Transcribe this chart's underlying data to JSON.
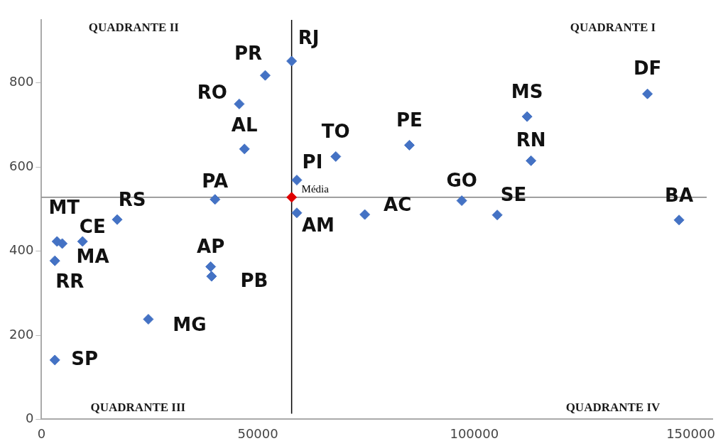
{
  "chart_data": {
    "type": "scatter",
    "xlim": [
      0,
      155000
    ],
    "ylim": [
      0,
      950
    ],
    "xticks": [
      0,
      50000,
      100000,
      150000
    ],
    "yticks": [
      0,
      200,
      400,
      600,
      800
    ],
    "grid": false,
    "legend": false,
    "marker": "diamond",
    "series": [
      {
        "color": "#4472c4",
        "x": [
          57800,
          51700,
          45700,
          46900,
          40100,
          59000,
          59000,
          68000,
          85000,
          74700,
          97100,
          105300,
          112200,
          113100,
          140000,
          147300,
          17500,
          3600,
          4800,
          9500,
          3100,
          39100,
          39300,
          24700,
          3100
        ],
        "values": [
          852,
          818,
          750,
          643,
          523,
          569,
          491,
          625,
          652,
          487,
          520,
          486,
          720,
          615,
          774,
          474,
          475,
          423,
          418,
          423,
          377,
          363,
          340,
          238,
          141
        ]
      },
      {
        "name": "Média",
        "color": "#e00000",
        "x": [
          57800
        ],
        "values": [
          528
        ]
      }
    ],
    "ref_lines": [
      {
        "axis": "x",
        "value": 57800,
        "color": "#000000"
      },
      {
        "axis": "y",
        "value": 528,
        "color": "#808080"
      }
    ],
    "annotations": [
      "QUADRANTE I",
      "QUADRANTE II",
      "QUADRANTE III",
      "QUADRANTE IV",
      {
        "text": "RJ",
        "x": 57800,
        "y": 852
      },
      {
        "text": "PR",
        "x": 51700,
        "y": 818
      },
      {
        "text": "RO",
        "x": 45700,
        "y": 750
      },
      {
        "text": "AL",
        "x": 46900,
        "y": 643
      },
      {
        "text": "PA",
        "x": 40100,
        "y": 523
      },
      {
        "text": "PI",
        "x": 59000,
        "y": 569
      },
      {
        "text": "AM",
        "x": 59000,
        "y": 491
      },
      {
        "text": "TO",
        "x": 68000,
        "y": 625
      },
      {
        "text": "PE",
        "x": 85000,
        "y": 652
      },
      {
        "text": "AC",
        "x": 74700,
        "y": 487
      },
      {
        "text": "GO",
        "x": 97100,
        "y": 520
      },
      {
        "text": "SE",
        "x": 105300,
        "y": 486
      },
      {
        "text": "MS",
        "x": 112200,
        "y": 720
      },
      {
        "text": "RN",
        "x": 113100,
        "y": 615
      },
      {
        "text": "DF",
        "x": 140000,
        "y": 774
      },
      {
        "text": "BA",
        "x": 147300,
        "y": 474
      },
      {
        "text": "RS",
        "x": 17500,
        "y": 475
      },
      {
        "text": "MT",
        "x": 3600,
        "y": 423
      },
      {
        "text": "MA",
        "x": 4800,
        "y": 418
      },
      {
        "text": "CE",
        "x": 9500,
        "y": 423
      },
      {
        "text": "RR",
        "x": 3100,
        "y": 377
      },
      {
        "text": "AP",
        "x": 39100,
        "y": 363
      },
      {
        "text": "PB",
        "x": 39300,
        "y": 340
      },
      {
        "text": "MG",
        "x": 24700,
        "y": 238
      },
      {
        "text": "SP",
        "x": 3100,
        "y": 141
      }
    ]
  }
}
